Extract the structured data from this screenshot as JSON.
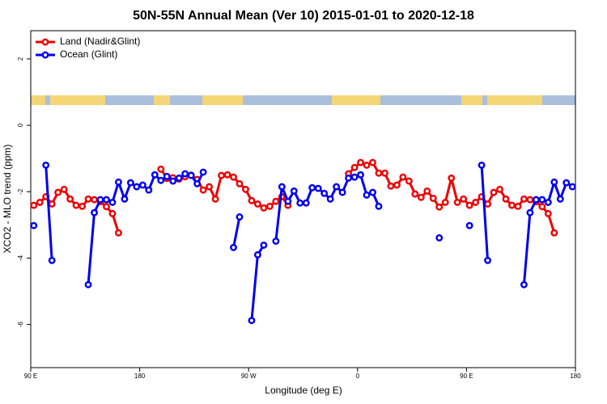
{
  "chart_data": {
    "type": "line",
    "title": "50N-55N Annual Mean (Ver 10)   2015-01-01 to 2020-12-18",
    "x_label": "Longitude (deg E)",
    "y_label": "XCO2 - MLO trend (ppm)",
    "xlim": [
      90,
      540
    ],
    "ylim": [
      -7.3,
      2.85
    ],
    "xticks": [
      {
        "value": 90,
        "label": "90 E"
      },
      180,
      {
        "value": 270,
        "label": "90 W"
      },
      {
        "value": 360,
        "label": "0"
      },
      {
        "value": 450,
        "label": "90 E"
      },
      {
        "value": 540,
        "label": "180"
      }
    ],
    "yticks": [
      -6,
      -4,
      -2,
      0,
      2
    ],
    "legend": "top-left",
    "x": [
      92.5,
      97.5,
      102.5,
      107.5,
      112.5,
      117.5,
      122.5,
      127.5,
      132.5,
      137.5,
      142.5,
      147.5,
      152.5,
      157.5,
      162.5,
      167.5,
      172.5,
      177.5,
      182.5,
      187.5,
      192.5,
      197.5,
      202.5,
      207.5,
      212.5,
      217.5,
      222.5,
      227.5,
      232.5,
      237.5,
      242.5,
      247.5,
      252.5,
      257.5,
      262.5,
      267.5,
      272.5,
      277.5,
      282.5,
      287.5,
      292.5,
      297.5,
      302.5,
      307.5,
      312.5,
      317.5,
      322.5,
      327.5,
      332.5,
      337.5,
      342.5,
      347.5,
      352.5,
      357.5,
      362.5,
      367.5,
      372.5,
      377.5,
      382.5,
      387.5,
      392.5,
      397.5,
      402.5,
      407.5,
      412.5,
      417.5,
      422.5,
      427.5,
      432.5,
      437.5,
      442.5,
      447.5,
      452.5,
      457.5,
      462.5,
      467.5,
      472.5,
      477.5,
      482.5,
      487.5,
      492.5,
      497.5,
      502.5,
      507.5,
      512.5,
      517.5,
      522.5,
      527.5,
      532.5,
      537.5
    ],
    "series": [
      {
        "name": "Land (Nadir&Glint)",
        "color": "#ee0000",
        "values": [
          -2.41,
          -2.32,
          -2.15,
          -2.37,
          -2.02,
          -1.93,
          -2.22,
          -2.41,
          -2.44,
          -2.22,
          -2.24,
          -2.3,
          -2.45,
          -2.66,
          -3.24,
          null,
          null,
          null,
          null,
          null,
          null,
          -1.32,
          -1.6,
          -1.58,
          -1.62,
          -1.55,
          -1.5,
          -1.63,
          -1.95,
          -1.85,
          -2.22,
          -1.51,
          -1.49,
          -1.56,
          -1.76,
          -1.93,
          -2.27,
          -2.37,
          -2.49,
          -2.44,
          -2.29,
          -2.15,
          -2.41,
          null,
          null,
          null,
          null,
          null,
          null,
          null,
          null,
          null,
          -1.46,
          -1.27,
          -1.12,
          -1.2,
          -1.12,
          -1.44,
          -1.44,
          -1.83,
          -1.8,
          -1.56,
          -1.68,
          -2.07,
          -2.17,
          -1.98,
          -2.2,
          -2.46,
          -2.32,
          -1.59,
          -2.32,
          -2.22,
          -2.41,
          -2.32,
          -2.15,
          -2.37,
          -2.02,
          -1.93,
          -2.22,
          -2.41,
          -2.44,
          -2.22,
          -2.24,
          -2.3,
          -2.45,
          -2.66,
          -3.24,
          null,
          null,
          null
        ]
      },
      {
        "name": "Ocean (Glint)",
        "color": "#0000ee",
        "values": [
          -3.02,
          null,
          -1.2,
          -4.07,
          null,
          null,
          null,
          null,
          null,
          -4.8,
          -2.63,
          -2.24,
          -2.24,
          -2.32,
          -1.71,
          -2.22,
          -1.73,
          -1.85,
          -1.8,
          -1.95,
          -1.49,
          -1.66,
          -1.54,
          -1.68,
          -1.59,
          -1.46,
          -1.51,
          -1.76,
          -1.41,
          null,
          null,
          null,
          null,
          -3.68,
          -2.76,
          null,
          -5.88,
          -3.9,
          -3.61,
          null,
          -3.49,
          -1.85,
          -2.29,
          -1.98,
          -2.34,
          -2.34,
          -1.88,
          -1.9,
          -2.05,
          -2.22,
          -1.85,
          -2.02,
          -1.59,
          -1.56,
          -1.49,
          -2.1,
          -2.02,
          -2.44,
          null,
          null,
          null,
          null,
          null,
          null,
          null,
          null,
          null,
          -3.39,
          null,
          null,
          null,
          null,
          -3.02,
          null,
          -1.2,
          -4.07,
          null,
          null,
          null,
          null,
          null,
          -4.8,
          -2.63,
          -2.24,
          -2.24,
          -2.32,
          -1.71,
          -2.22,
          -1.73,
          -1.85
        ]
      }
    ]
  }
}
